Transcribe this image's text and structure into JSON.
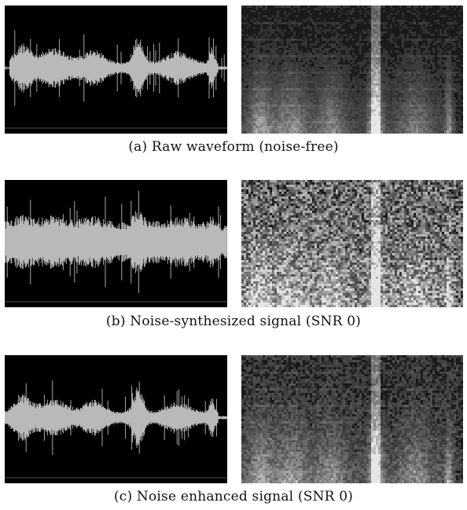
{
  "figure": {
    "rows": [
      {
        "id": "a",
        "caption": "(a) Raw waveform (noise-free)",
        "waveform_style": "clean",
        "spectrogram_noise_level": 0.12,
        "spectrogram_texture": "clean"
      },
      {
        "id": "b",
        "caption": "(b) Noise-synthesized signal (SNR 0)",
        "waveform_style": "noisy",
        "spectrogram_noise_level": 0.85,
        "spectrogram_texture": "noisy"
      },
      {
        "id": "c",
        "caption": "(c) Noise enhanced signal (SNR 0)",
        "waveform_style": "enhanced",
        "spectrogram_noise_level": 0.28,
        "spectrogram_texture": "enhanced"
      }
    ],
    "colors": {
      "panel_background": "#000000",
      "waveform": "#b9b9b9",
      "spectrogram_base": "#1a1a1a",
      "spectrogram_bright": "#e8e8e8",
      "frame": "#6b6b6b"
    }
  }
}
